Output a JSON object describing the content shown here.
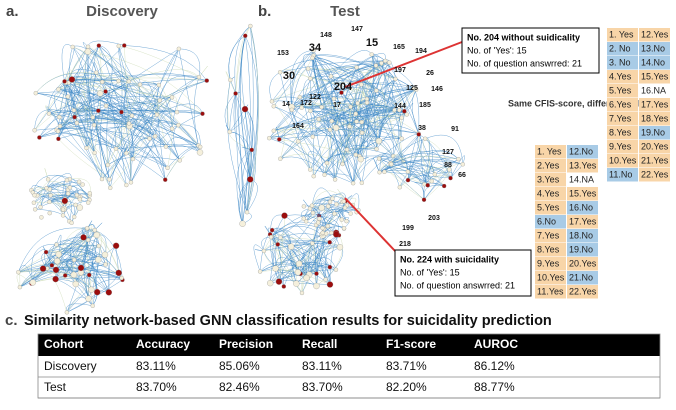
{
  "panel_a": {
    "letter": "a.",
    "title": "Discovery"
  },
  "panel_b": {
    "letter": "b.",
    "title": "Test",
    "node_labels": [
      "153",
      "34",
      "148",
      "147",
      "15",
      "165",
      "194",
      "30",
      "204",
      "197",
      "26",
      "125",
      "146",
      "14",
      "172",
      "17",
      "122",
      "144",
      "185",
      "38",
      "91",
      "127",
      "88",
      "66",
      "164",
      "199",
      "203",
      "218"
    ],
    "callout_top": {
      "title": "No. 204 without suidicality",
      "line1": "No. of 'Yes': 15",
      "line2": "No. of question answrred: 21"
    },
    "callout_bottom": {
      "title": "No. 224 with suicidality",
      "line1": "No. of 'Yes': 15",
      "line2": "No. of question answrred: 21"
    },
    "note": "Same CFIS-score, different SAE.",
    "grid_top": [
      [
        "1. Yes",
        "12.Yes"
      ],
      [
        "2. No",
        "13.No"
      ],
      [
        "3. No",
        "14.No"
      ],
      [
        "4.Yes",
        "15.Yes"
      ],
      [
        "5.Yes",
        "16.NA"
      ],
      [
        "6.Yes",
        "17.Yes"
      ],
      [
        "7.Yes",
        "18.Yes"
      ],
      [
        "8.Yes",
        "19.No"
      ],
      [
        "9.Yes",
        "20.Yes"
      ],
      [
        "10.Yes",
        "21.Yes"
      ],
      [
        "11.No",
        "22.Yes"
      ]
    ],
    "grid_bottom": [
      [
        "1. Yes",
        "12.No"
      ],
      [
        "2.Yes",
        "13.Yes"
      ],
      [
        "3.Yes",
        "14.NA"
      ],
      [
        "4.Yes",
        "15.Yes"
      ],
      [
        "5.Yes",
        "16.No"
      ],
      [
        "6.No",
        "17.Yes"
      ],
      [
        "7.Yes",
        "18.No"
      ],
      [
        "8.Yes",
        "19.No"
      ],
      [
        "9.Yes",
        "20.Yes"
      ],
      [
        "10.Yes",
        "21.No"
      ],
      [
        "11.Yes",
        "22.Yes"
      ]
    ]
  },
  "panel_c": {
    "letter": "c.",
    "title": "Similarity network-based GNN classification results for suicidality prediction",
    "table": {
      "header": [
        "Cohort",
        "Accuracy",
        "Precision",
        "Recall",
        "F1-score",
        "AUROC"
      ],
      "rows": [
        [
          "Discovery",
          "83.11%",
          "85.06%",
          "83.11%",
          "83.71%",
          "86.12%"
        ],
        [
          "Test",
          "83.70%",
          "82.46%",
          "83.70%",
          "82.20%",
          "88.77%"
        ]
      ]
    }
  }
}
